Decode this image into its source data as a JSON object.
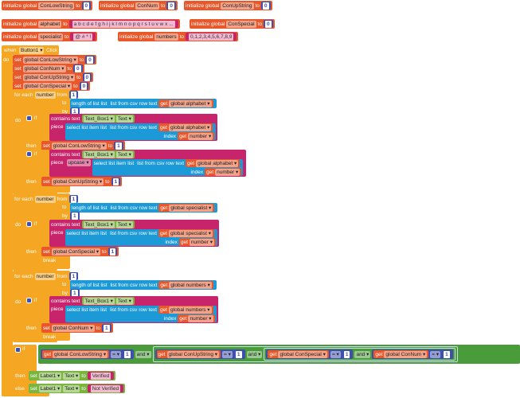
{
  "inits": [
    {
      "label": "initialize global",
      "name": "ConLowString",
      "to": "to",
      "value": "0"
    },
    {
      "label": "initialize global",
      "name": "ConNum",
      "to": "to",
      "value": "0"
    },
    {
      "label": "initialize global",
      "name": "ConUpString",
      "to": "to",
      "value": "0"
    },
    {
      "label": "initialize global",
      "name": "alphabet",
      "to": "to",
      "value": "a b c d e f g h i j k l m n o p q r s t u v w x ..."
    },
    {
      "label": "initialize global",
      "name": "ConSpecial",
      "to": "to",
      "value": "0"
    },
    {
      "label": "initialize global",
      "name": "specialist",
      "to": "to",
      "value": "@ # * !"
    },
    {
      "label": "initialize global",
      "name": "numbers",
      "to": "to",
      "value": "0,1,2,3,4,5,6,7,8,9"
    }
  ],
  "event": {
    "when": "when",
    "component": "Button1 ▾",
    "click": "Click",
    "do": "do"
  },
  "sets": [
    {
      "set": "set",
      "var": "global ConLowString ▾",
      "to": "to",
      "value": "0"
    },
    {
      "set": "set",
      "var": "global ConNum ▾",
      "to": "to",
      "value": "0"
    },
    {
      "set": "set",
      "var": "global ConUpString ▾",
      "to": "to",
      "value": "0"
    },
    {
      "set": "set",
      "var": "global ConSpecial ▾",
      "to": "to",
      "value": "0"
    }
  ],
  "kw": {
    "for_each": "for each",
    "number": "number",
    "from": "from",
    "to": "to",
    "by": "by",
    "do": "do",
    "if": "if",
    "then": "then",
    "else": "else",
    "one": "1",
    "length": "length of list  list",
    "csv": "list from csv row  text",
    "get": "get",
    "contains": "contains text",
    "piece": "piece",
    "select": "select list item  list",
    "index": "index",
    "get_number": "number ▾",
    "textbox": "Text_Box1 ▾",
    "text_prop": "Text ▾",
    "upcase": "upcase ▾",
    "break": "break",
    "set": "set",
    "and": "and ▾",
    "eq": "= ▾",
    "label1": "Label1 ▾",
    "verified": "Verified",
    "not_verified": "Not Verified"
  },
  "vars": {
    "alphabet": "global alphabet ▾",
    "specialist": "global specialist ▾",
    "numbers": "global numbers ▾",
    "low": "global ConLowString ▾",
    "up": "global ConUpString ▾",
    "special": "global ConSpecial ▾",
    "num": "global ConNum ▾"
  },
  "colors": {
    "variable": "#e8582a",
    "control": "#f5a623",
    "math": "#3f4fb0",
    "text": "#c8246b",
    "list": "#1c9ad8",
    "component": "#7ab540",
    "logic": "#4a9b3a"
  }
}
